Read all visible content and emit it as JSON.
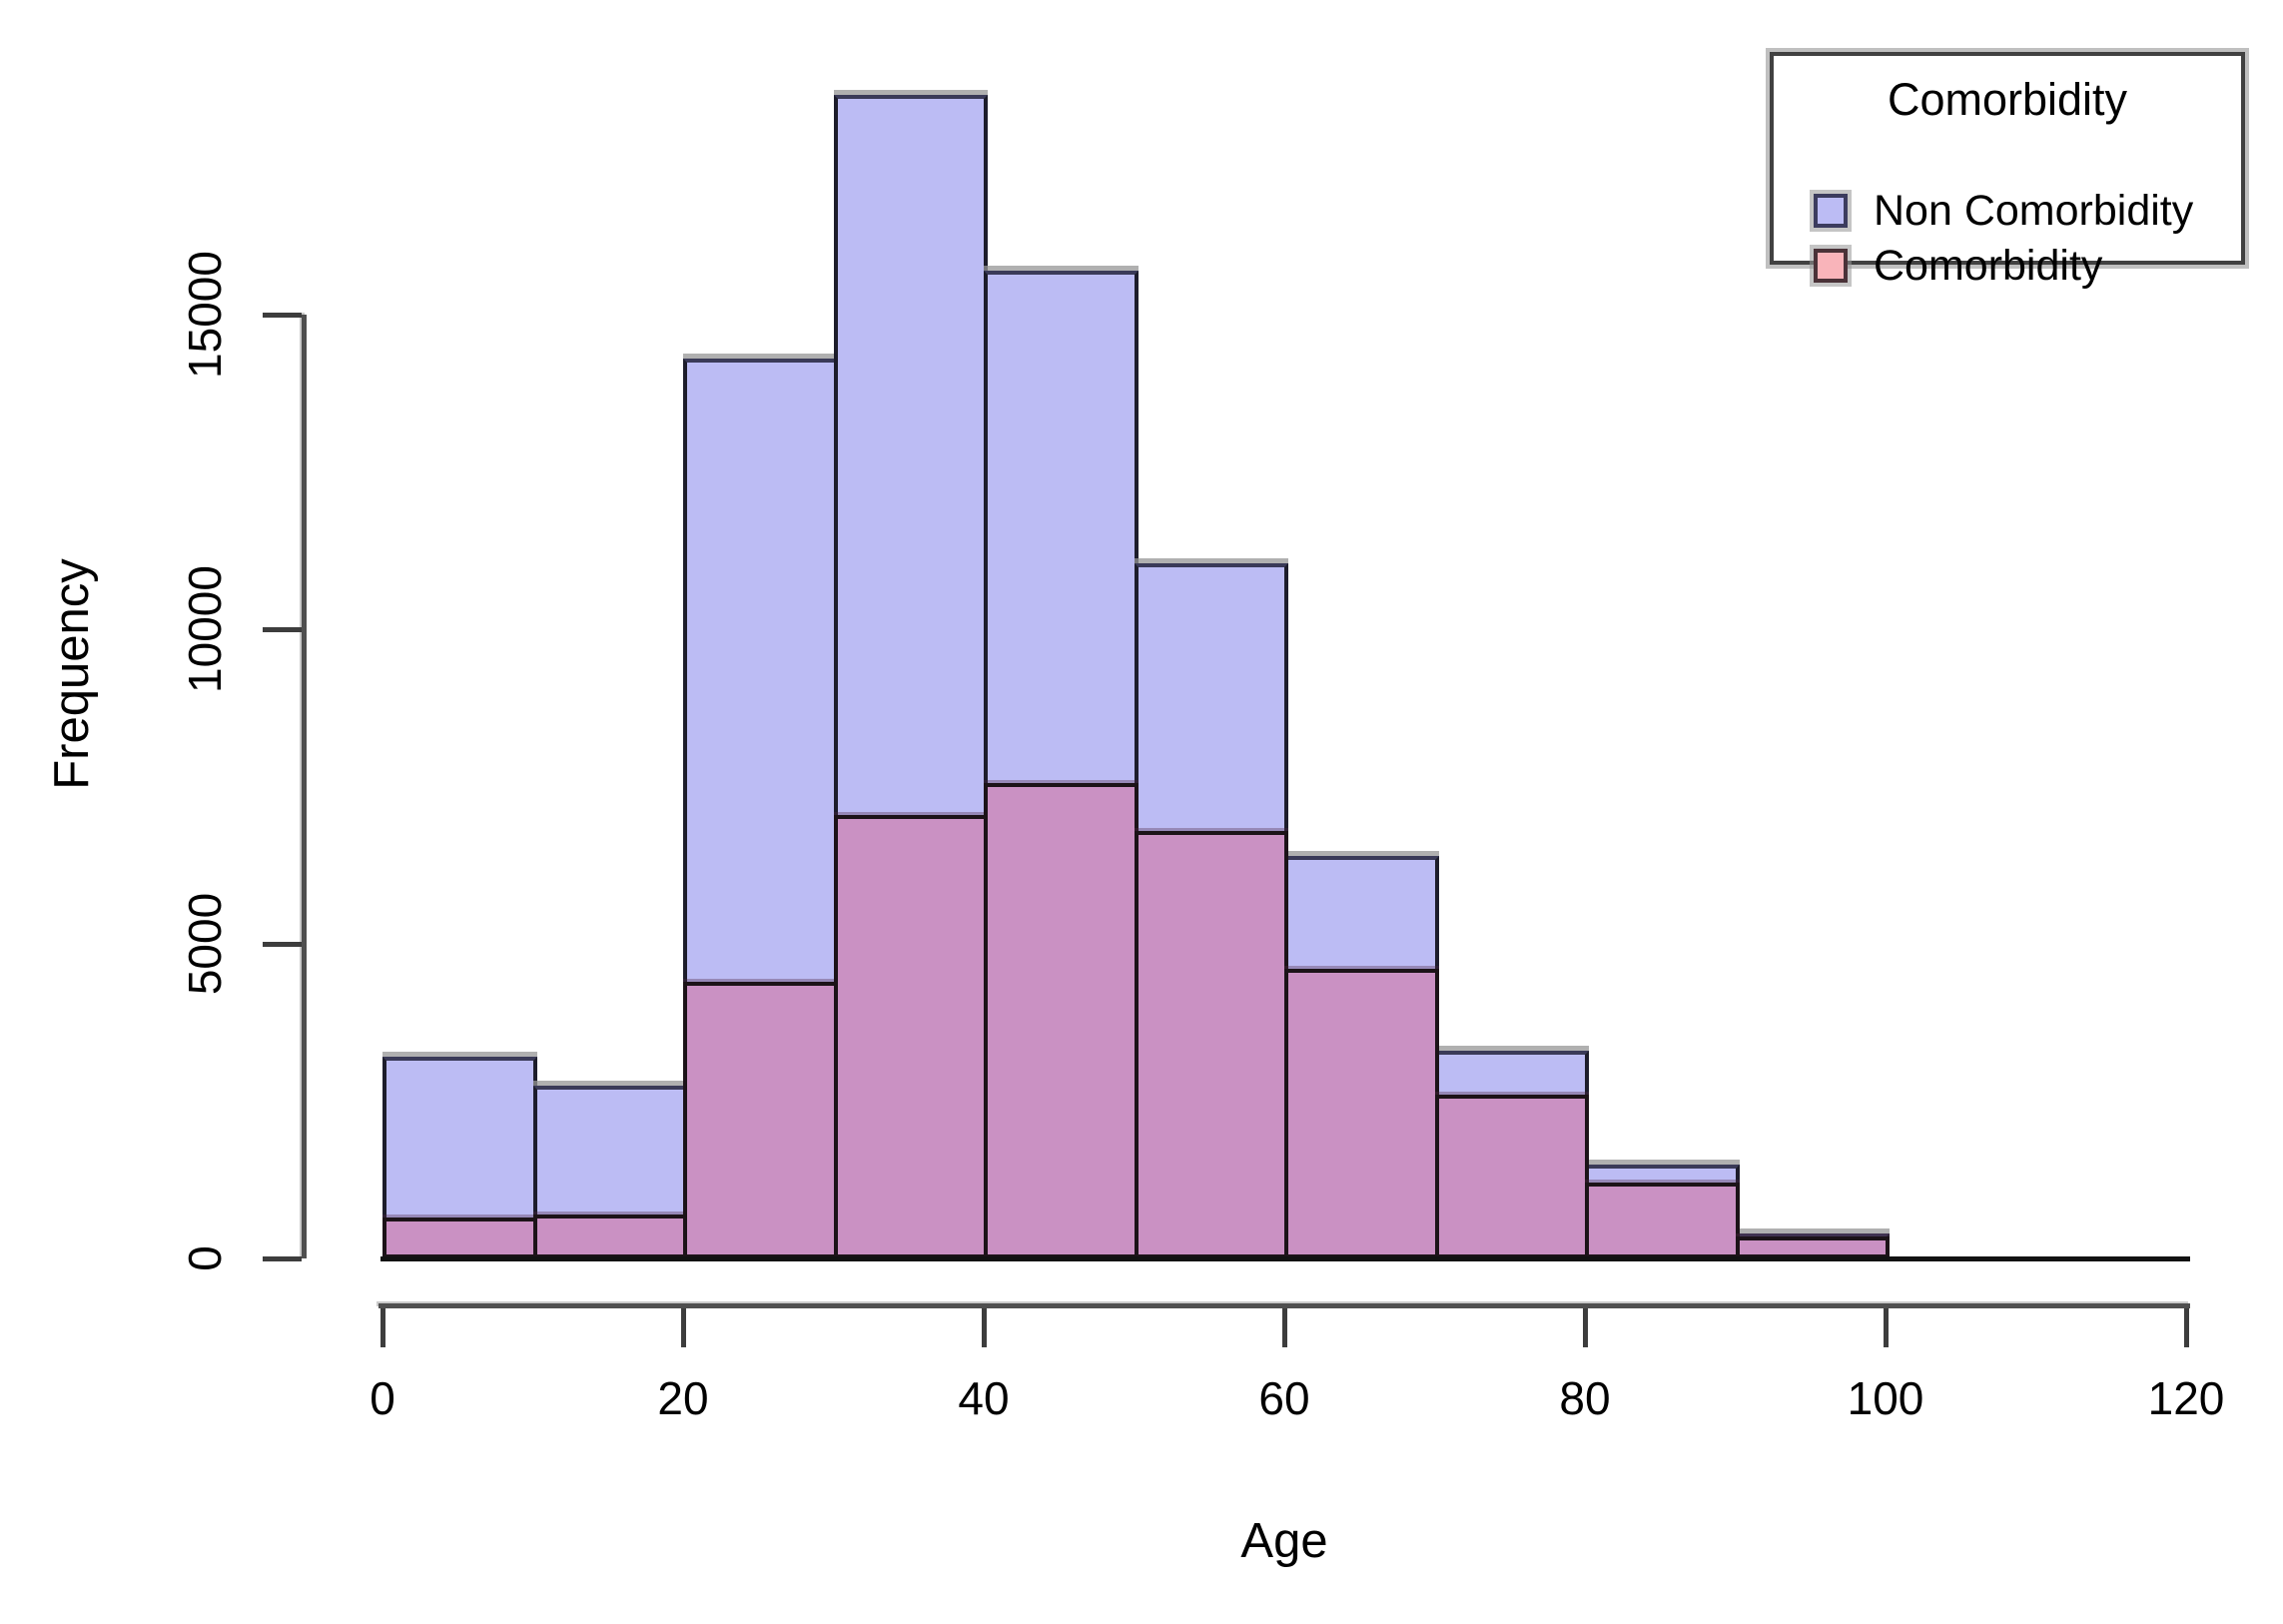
{
  "figure": {
    "background": "#ffffff",
    "kind": "R base-graphics overlaid histogram"
  },
  "axes": {
    "x": {
      "title": "Age",
      "tick_labels": [
        "0",
        "20",
        "40",
        "60",
        "80",
        "100",
        "120"
      ],
      "tick_values": [
        0,
        20,
        40,
        60,
        80,
        100,
        120
      ],
      "range": [
        0,
        120
      ]
    },
    "y": {
      "title": "Frequency",
      "tick_labels": [
        "0",
        "5000",
        "10000",
        "15000"
      ],
      "tick_values": [
        0,
        5000,
        10000,
        15000
      ],
      "range": [
        0,
        15000
      ]
    }
  },
  "legend": {
    "title": "Comorbidity",
    "items": [
      {
        "label": "Non Comorbidity",
        "swatch_fill": "#bcbcf4",
        "swatch_border": "#3c3c5e"
      },
      {
        "label": "Comorbidity",
        "swatch_fill": "#f9b4ba",
        "swatch_border": "#4a3238"
      }
    ]
  },
  "colors": {
    "non_comorbidity_fill": "#bcbcf4",
    "comorbidity_pure_fill": "#f9b4ba",
    "comorbidity_overlap_fill": "#ca91c3",
    "bar_border": "#1d1d2b",
    "axis_line": "#4f4f4f",
    "text": "#000000",
    "background": "#ffffff"
  },
  "chart_data": {
    "type": "bar",
    "subtype": "overlaid-histogram",
    "title": "",
    "xlabel": "Age",
    "ylabel": "Frequency",
    "bin_width": 10,
    "bin_starts": [
      0,
      10,
      20,
      30,
      40,
      50,
      60,
      70,
      80,
      90
    ],
    "categories": [
      "0-10",
      "10-20",
      "20-30",
      "30-40",
      "40-50",
      "50-60",
      "60-70",
      "70-80",
      "80-90",
      "90-100"
    ],
    "series": [
      {
        "name": "Non Comorbidity",
        "values": [
          3200,
          2750,
          14300,
          18500,
          15700,
          11050,
          6400,
          3300,
          1500,
          400
        ]
      },
      {
        "name": "Comorbidity",
        "values": [
          650,
          700,
          4400,
          7050,
          7550,
          6800,
          4600,
          2600,
          1200,
          350
        ]
      }
    ],
    "xlim": [
      0,
      120
    ],
    "ylim": [
      0,
      15000
    ],
    "grid": false,
    "legend_position": "top-right",
    "note": "Comorbidity series drawn over Non Comorbidity; overlap renders mauve #ca91c3"
  }
}
